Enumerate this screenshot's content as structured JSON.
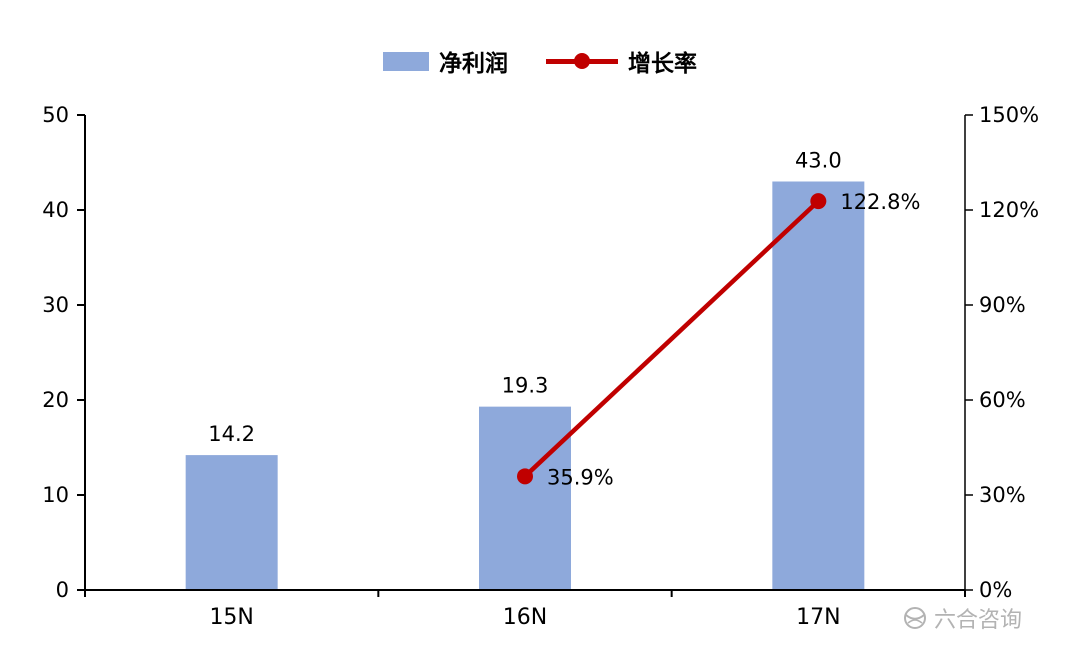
{
  "legend": {
    "bar_label": "净利润",
    "line_label": "增长率"
  },
  "watermark": "六合咨询",
  "colors": {
    "bar": "#8EA9DB",
    "line": "#C00000",
    "axis": "#000000",
    "watermark": "#b3b3b3"
  },
  "chart_data": {
    "type": "bar+line",
    "categories": [
      "15N",
      "16N",
      "17N"
    ],
    "series": [
      {
        "name": "净利润",
        "type": "bar",
        "axis": "left",
        "values": [
          14.2,
          19.3,
          43.0
        ],
        "labels": [
          "14.2",
          "19.3",
          "43.0"
        ]
      },
      {
        "name": "增长率",
        "type": "line",
        "axis": "right",
        "values": [
          null,
          35.9,
          122.8
        ],
        "labels": [
          null,
          "35.9%",
          "122.8%"
        ]
      }
    ],
    "left_axis": {
      "min": 0,
      "max": 50,
      "ticks": [
        0,
        10,
        20,
        30,
        40,
        50
      ],
      "tick_labels": [
        "0",
        "10",
        "20",
        "30",
        "40",
        "50"
      ]
    },
    "right_axis": {
      "min": 0,
      "max": 150,
      "ticks": [
        0,
        30,
        60,
        90,
        120,
        150
      ],
      "tick_labels": [
        "0%",
        "30%",
        "60%",
        "90%",
        "120%",
        "150%"
      ]
    },
    "grid": false,
    "legend_position": "top-center"
  }
}
